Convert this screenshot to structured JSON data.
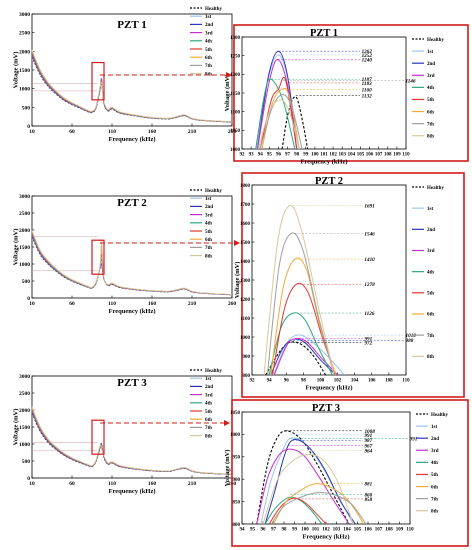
{
  "legend_labels": [
    "Healthy",
    "1st",
    "2nd",
    "3rd",
    "4th",
    "5th",
    "6th",
    "7th",
    "8th"
  ],
  "series_colors": [
    "#000000",
    "#9fc4ea",
    "#2a36b8",
    "#c62fd2",
    "#2ca87a",
    "#e0382f",
    "#f2a93a",
    "#9e9e9e",
    "#d8c79a"
  ],
  "series_dashes": [
    "dash",
    "solid",
    "solid",
    "solid",
    "solid",
    "solid",
    "solid",
    "solid",
    "solid"
  ],
  "chart_data": [
    {
      "id": "pzt1-full",
      "type": "line",
      "title": "PZT 1",
      "xlabel": "Frequency (kHz)",
      "ylabel": "Voltage (mV)",
      "xlim": [
        10,
        260
      ],
      "ylim": [
        0,
        3000
      ],
      "xticks": [
        "10",
        "60",
        "110",
        "160",
        "210",
        "260"
      ],
      "yticks": [
        "0",
        "500",
        "1000",
        "1500",
        "2000",
        "2500",
        "3000"
      ],
      "x": [
        10,
        20,
        30,
        40,
        50,
        60,
        70,
        80,
        85,
        90,
        95,
        97,
        100,
        105,
        110,
        120,
        140,
        160,
        180,
        190,
        200,
        205,
        210,
        220,
        240,
        260
      ],
      "base": [
        1950,
        1450,
        1120,
        900,
        720,
        600,
        500,
        400,
        380,
        500,
        1000,
        1050,
        620,
        420,
        480,
        360,
        280,
        220,
        200,
        240,
        290,
        250,
        200,
        160,
        130,
        110
      ],
      "series_peaks": [
        1140,
        1252,
        1262,
        1240,
        1187,
        1183,
        1160,
        1146,
        1132
      ],
      "zoom_window": {
        "x": [
          92,
          98
        ],
        "y": [
          940,
          1140
        ]
      }
    },
    {
      "id": "pzt1-zoom",
      "type": "line",
      "title": "PZT 1",
      "xlabel": "Frequency (kHz)",
      "ylabel": "Voltage (mV)",
      "xlim": [
        92,
        110
      ],
      "ylim": [
        1000,
        1300
      ],
      "xticks": [
        "92",
        "93",
        "94",
        "95",
        "96",
        "97",
        "98",
        "99",
        "100",
        "101",
        "102",
        "103",
        "104",
        "105",
        "106",
        "107",
        "108",
        "109",
        "110"
      ],
      "yticks": [
        "1000",
        "1050",
        "1100",
        "1150",
        "1200",
        "1250",
        "1300"
      ],
      "series": [
        {
          "name": "Healthy",
          "x": [
            96.4,
            97.1,
            97.9,
            98.6,
            99.2
          ],
          "values": [
            1000,
            1100,
            1140,
            1080,
            1000
          ]
        },
        {
          "name": "1st",
          "x": [
            93.6,
            94.8,
            96.0,
            97.1,
            98.2
          ],
          "values": [
            1000,
            1180,
            1252,
            1180,
            1000
          ]
        },
        {
          "name": "2nd",
          "x": [
            93.7,
            94.9,
            96.0,
            97.0,
            98.0
          ],
          "values": [
            1000,
            1195,
            1262,
            1195,
            1000
          ]
        },
        {
          "name": "3rd",
          "x": [
            93.7,
            94.9,
            95.9,
            97.0,
            98.0
          ],
          "values": [
            1000,
            1170,
            1240,
            1170,
            1000
          ]
        },
        {
          "name": "4th",
          "x": [
            93.5,
            94.5,
            95.2,
            96.5,
            97.8
          ],
          "values": [
            1000,
            1150,
            1187,
            1130,
            1000
          ]
        },
        {
          "name": "5th",
          "x": [
            94.0,
            95.2,
            96.0,
            96.8,
            98.0
          ],
          "values": [
            1000,
            1130,
            1160,
            1183,
            1000
          ]
        },
        {
          "name": "6th",
          "x": [
            94.2,
            95.3,
            96.4,
            97.2,
            98.3
          ],
          "values": [
            1000,
            1120,
            1160,
            1140,
            1000
          ]
        },
        {
          "name": "7th",
          "x": [
            94.0,
            95.3,
            96.5,
            97.5,
            98.6
          ],
          "values": [
            1000,
            1110,
            1146,
            1110,
            1000
          ]
        },
        {
          "name": "8th",
          "x": [
            93.8,
            95.0,
            96.2,
            97.2,
            98.3
          ],
          "values": [
            1000,
            1100,
            1132,
            1100,
            1000
          ]
        }
      ],
      "annotations": [
        {
          "text": "1262",
          "y": 1262,
          "series": 2
        },
        {
          "text": "1252",
          "y": 1252,
          "series": 1
        },
        {
          "text": "1240",
          "y": 1240,
          "series": 3
        },
        {
          "text": "1187",
          "y": 1187,
          "series": 4
        },
        {
          "text": "1146",
          "y": 1183,
          "series": 7,
          "right": true
        },
        {
          "text": "1183",
          "y": 1177,
          "series": 5
        },
        {
          "text": "1160",
          "y": 1160,
          "series": 6
        },
        {
          "text": "1132",
          "y": 1143,
          "series": 0
        }
      ]
    },
    {
      "id": "pzt2-full",
      "type": "line",
      "title": "PZT 2",
      "xlabel": "Frequency (kHz)",
      "ylabel": "Voltage (mV)",
      "xlim": [
        10,
        260
      ],
      "ylim": [
        0,
        3000
      ],
      "xticks": [
        "10",
        "60",
        "110",
        "160",
        "210",
        "260"
      ],
      "yticks": [
        "0",
        "500",
        "1000",
        "1500",
        "2000",
        "2500",
        "3000"
      ],
      "x": [
        10,
        20,
        30,
        40,
        50,
        60,
        70,
        80,
        85,
        90,
        95,
        97,
        100,
        105,
        110,
        120,
        140,
        160,
        180,
        190,
        200,
        205,
        210,
        220,
        240,
        260
      ],
      "base": [
        1900,
        1350,
        1050,
        830,
        650,
        520,
        420,
        330,
        300,
        450,
        900,
        980,
        560,
        380,
        420,
        320,
        250,
        210,
        190,
        230,
        280,
        240,
        190,
        150,
        120,
        100
      ],
      "series_peaks": [
        972,
        1010,
        988,
        991,
        1126,
        1278,
        1410,
        1546,
        1691
      ],
      "zoom_window": {
        "x": [
          92,
          98
        ],
        "y": [
          800,
          1800
        ]
      }
    },
    {
      "id": "pzt2-zoom",
      "type": "line",
      "title": "PZT 2",
      "xlabel": "Frequency (kHz)",
      "ylabel": "Voltage (mV)",
      "xlim": [
        92,
        110
      ],
      "ylim": [
        800,
        1800
      ],
      "xticks": [
        "92",
        "94",
        "96",
        "98",
        "100",
        "102",
        "104",
        "106",
        "108",
        "110"
      ],
      "yticks": [
        "800",
        "900",
        "1000",
        "1100",
        "1200",
        "1300",
        "1400",
        "1500",
        "1600",
        "1700",
        "1800"
      ],
      "series": [
        {
          "name": "Healthy",
          "x": [
            93.6,
            95.2,
            96.4,
            97.8,
            99.2,
            100.6
          ],
          "values": [
            800,
            920,
            972,
            960,
            900,
            800
          ]
        },
        {
          "name": "1st",
          "x": [
            94.5,
            96.0,
            97.2,
            98.6,
            100.8,
            102.8
          ],
          "values": [
            800,
            960,
            1010,
            990,
            900,
            800
          ]
        },
        {
          "name": "2nd",
          "x": [
            94.2,
            95.6,
            96.8,
            98.2,
            100.0,
            101.8
          ],
          "values": [
            800,
            940,
            988,
            970,
            880,
            800
          ]
        },
        {
          "name": "3rd",
          "x": [
            94.6,
            96.0,
            97.0,
            98.4,
            100.2,
            102.0
          ],
          "values": [
            800,
            950,
            991,
            975,
            885,
            800
          ]
        },
        {
          "name": "4th",
          "x": [
            94.0,
            95.4,
            96.8,
            98.2,
            99.8,
            101.4
          ],
          "values": [
            800,
            1050,
            1126,
            1090,
            940,
            800
          ]
        },
        {
          "name": "5th",
          "x": [
            94.4,
            95.8,
            97.2,
            98.6,
            100.2,
            101.8
          ],
          "values": [
            800,
            1150,
            1278,
            1230,
            1000,
            800
          ]
        },
        {
          "name": "6th",
          "x": [
            94.2,
            95.6,
            97.0,
            98.4,
            100.0,
            101.8
          ],
          "values": [
            800,
            1250,
            1410,
            1350,
            1050,
            800
          ]
        },
        {
          "name": "7th",
          "x": [
            93.8,
            95.2,
            96.6,
            98.0,
            99.8,
            101.6
          ],
          "values": [
            800,
            1380,
            1546,
            1450,
            1100,
            800
          ]
        },
        {
          "name": "8th",
          "x": [
            93.4,
            95.0,
            96.4,
            97.8,
            99.8,
            101.6
          ],
          "values": [
            800,
            1500,
            1691,
            1560,
            1150,
            800
          ]
        }
      ],
      "annotations": [
        {
          "text": "1691",
          "y": 1691,
          "series": 8
        },
        {
          "text": "1546",
          "y": 1546,
          "series": 7
        },
        {
          "text": "1410",
          "y": 1410,
          "series": 6
        },
        {
          "text": "1278",
          "y": 1278,
          "series": 5
        },
        {
          "text": "1126",
          "y": 1126,
          "series": 4
        },
        {
          "text": "1010",
          "y": 1010,
          "series": 1,
          "right": true
        },
        {
          "text": "991",
          "y": 991,
          "series": 3
        },
        {
          "text": "988",
          "y": 983,
          "series": 2,
          "right": true
        },
        {
          "text": "972",
          "y": 972,
          "series": 0
        }
      ]
    },
    {
      "id": "pzt3-full",
      "type": "line",
      "title": "PZT 3",
      "xlabel": "Frequency (kHz)",
      "ylabel": "Voltage (mV)",
      "xlim": [
        10,
        260
      ],
      "ylim": [
        0,
        3000
      ],
      "xticks": [
        "10",
        "60",
        "110",
        "160",
        "210",
        "260"
      ],
      "yticks": [
        "0",
        "500",
        "1000",
        "1500",
        "2000",
        "2500",
        "3000"
      ],
      "x": [
        10,
        20,
        30,
        40,
        50,
        60,
        70,
        80,
        85,
        90,
        95,
        97,
        100,
        105,
        110,
        120,
        140,
        160,
        180,
        190,
        200,
        205,
        210,
        220,
        240,
        260
      ],
      "base": [
        2000,
        1450,
        1100,
        880,
        700,
        570,
        470,
        380,
        350,
        500,
        900,
        950,
        620,
        420,
        460,
        350,
        270,
        220,
        200,
        250,
        300,
        260,
        210,
        160,
        130,
        110
      ],
      "series_peaks": [
        1008,
        991,
        987,
        967,
        964,
        860,
        858,
        880,
        870
      ],
      "zoom_window": {
        "x": [
          92,
          98
        ],
        "y": [
          800,
          1050
        ]
      }
    },
    {
      "id": "pzt3-zoom",
      "type": "line",
      "title": "PZT 3",
      "xlabel": "Frequency (kHz)",
      "ylabel": "Voltage (mV)",
      "xlim": [
        94,
        110
      ],
      "ylim": [
        800,
        1050
      ],
      "xticks": [
        "94",
        "95",
        "96",
        "97",
        "98",
        "99",
        "100",
        "101",
        "102",
        "103",
        "104",
        "105",
        "106",
        "107",
        "108",
        "109",
        "110"
      ],
      "yticks": [
        "800",
        "850",
        "900",
        "950",
        "1000",
        "1050"
      ],
      "series": [
        {
          "name": "Healthy",
          "x": [
            95.4,
            96.4,
            97.3,
            98.2,
            99.6,
            101.0,
            102.6,
            104.2
          ],
          "values": [
            800,
            930,
            990,
            1008,
            990,
            940,
            870,
            800
          ]
        },
        {
          "name": "1st",
          "x": [
            95.8,
            96.8,
            97.8,
            98.6,
            100.0,
            101.6,
            103.2,
            104.6
          ],
          "values": [
            800,
            900,
            960,
            991,
            980,
            930,
            860,
            800
          ]
        },
        {
          "name": "2nd",
          "x": [
            96.2,
            97.2,
            98.0,
            98.8,
            100.2,
            101.8,
            103.4,
            104.8
          ],
          "values": [
            800,
            880,
            950,
            987,
            975,
            925,
            850,
            800
          ]
        },
        {
          "name": "3rd",
          "x": [
            95.4,
            96.4,
            97.4,
            98.4,
            99.8,
            101.2,
            102.8,
            104.2
          ],
          "values": [
            800,
            900,
            950,
            967,
            955,
            910,
            850,
            800
          ]
        },
        {
          "name": "4th",
          "x": [
            96.2,
            97.0,
            97.8,
            98.6,
            99.6,
            100.6,
            101.6
          ],
          "values": [
            800,
            830,
            850,
            860,
            852,
            830,
            800
          ]
        },
        {
          "name": "5th",
          "x": [
            96.6,
            97.4,
            98.2,
            99.0,
            100.0,
            101.0,
            102.0
          ],
          "values": [
            800,
            830,
            850,
            858,
            848,
            825,
            800
          ]
        },
        {
          "name": "6th",
          "x": [
            97.0,
            98.2,
            99.6,
            101.0,
            102.6,
            104.2,
            105.6
          ],
          "values": [
            800,
            850,
            875,
            890,
            880,
            850,
            800
          ]
        },
        {
          "name": "7th",
          "x": [
            96.8,
            98.0,
            99.6,
            101.2,
            102.8,
            104.4,
            105.8
          ],
          "values": [
            800,
            840,
            860,
            870,
            865,
            845,
            800
          ]
        },
        {
          "name": "8th",
          "x": [
            96.0,
            97.4,
            98.8,
            100.2,
            101.6,
            103.0,
            104.6
          ],
          "values": [
            800,
            900,
            940,
            955,
            945,
            900,
            800
          ]
        }
      ],
      "annotations": [
        {
          "text": "1008",
          "y": 1008,
          "series": 0
        },
        {
          "text": "991",
          "y": 999,
          "series": 1
        },
        {
          "text": "987",
          "y": 987,
          "series": 2
        },
        {
          "text": "991",
          "y": 991,
          "series": 4,
          "right": true
        },
        {
          "text": "967",
          "y": 975,
          "series": 3
        },
        {
          "text": "964",
          "y": 964,
          "series": 8
        },
        {
          "text": "881",
          "y": 890,
          "series": 6
        },
        {
          "text": "860",
          "y": 866,
          "series": 4
        },
        {
          "text": "858",
          "y": 856,
          "series": 5
        }
      ]
    }
  ]
}
